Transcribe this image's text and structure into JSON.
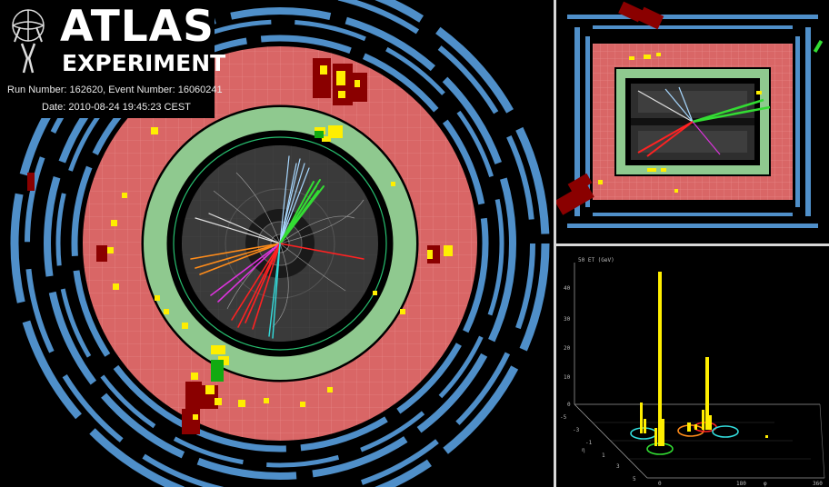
{
  "header": {
    "logo_title": "ATLAS",
    "logo_subtitle": "EXPERIMENT",
    "run_info": "Run Number: 162620, Event Number: 16060241",
    "date_info": "Date: 2010-08-24 19:45:23 CEST"
  },
  "colors": {
    "muon_chambers": "#4f8fc9",
    "hadronic_calorimeter": "#d96666",
    "em_calorimeter": "#8fc98f",
    "energy_deposit": "#ffee00",
    "large_deposit": "#8a0000",
    "inner_detector": "#3a3a3a",
    "track_green": "#33dd33",
    "track_light_blue": "#a8d8ff",
    "track_orange": "#ff8c1a",
    "track_red": "#ff2222",
    "track_magenta": "#dd33dd",
    "track_cyan": "#33dddd",
    "track_white": "#e0e0e0"
  },
  "lego_plot": {
    "z_axis_label": "50 ET (GeV)",
    "z_ticks": [
      "40",
      "30",
      "20",
      "10",
      "0"
    ],
    "eta_label": "η",
    "eta_ticks": [
      "-5",
      "-3",
      "-1",
      "1",
      "3",
      "5"
    ],
    "phi_label": "φ",
    "phi_ticks": [
      "0",
      "180",
      "360"
    ]
  }
}
